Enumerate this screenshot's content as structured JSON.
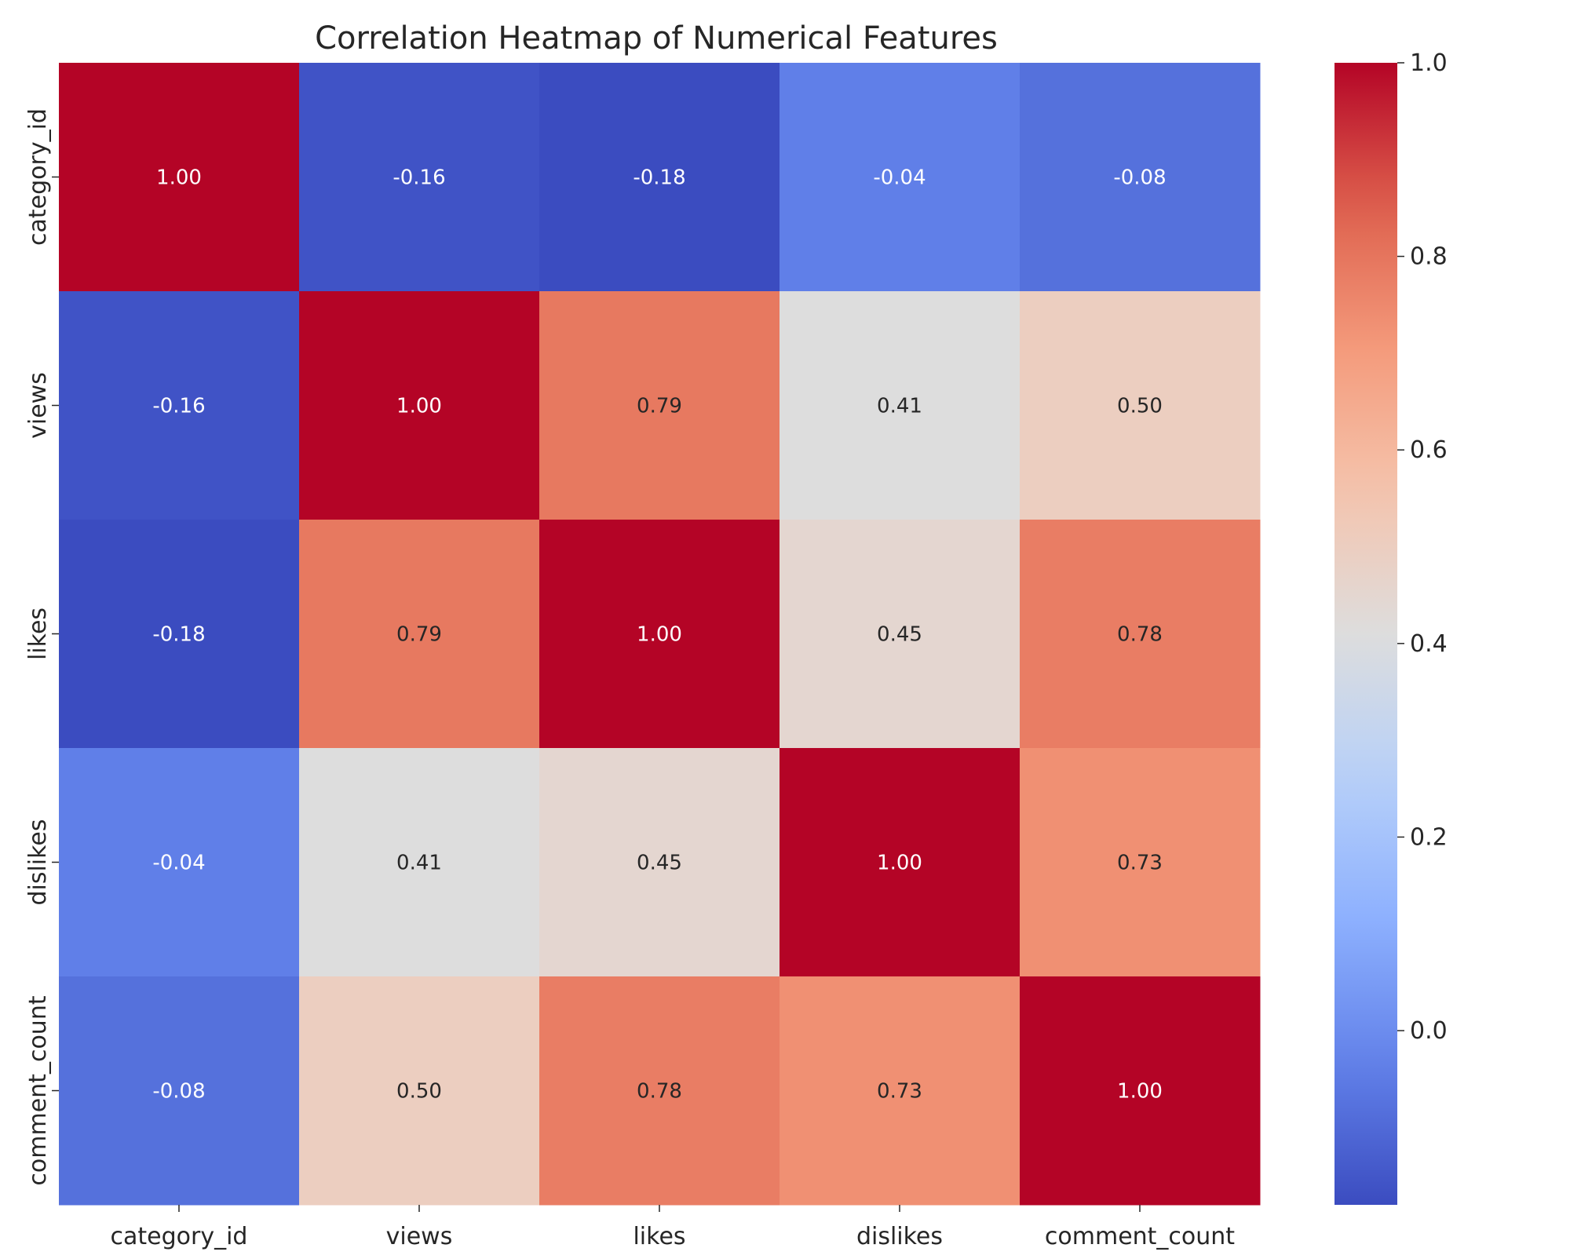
{
  "chart_data": {
    "type": "heatmap",
    "title": "Correlation Heatmap of Numerical Features",
    "xlabel": "",
    "ylabel": "",
    "x_categories": [
      "category_id",
      "views",
      "likes",
      "dislikes",
      "comment_count"
    ],
    "y_categories": [
      "category_id",
      "views",
      "likes",
      "dislikes",
      "comment_count"
    ],
    "values": [
      [
        1.0,
        -0.16,
        -0.18,
        -0.04,
        -0.08
      ],
      [
        -0.16,
        1.0,
        0.79,
        0.41,
        0.5
      ],
      [
        -0.18,
        0.79,
        1.0,
        0.45,
        0.78
      ],
      [
        -0.04,
        0.41,
        0.45,
        1.0,
        0.73
      ],
      [
        -0.08,
        0.5,
        0.78,
        0.73,
        1.0
      ]
    ],
    "value_labels": [
      [
        "1.00",
        "-0.16",
        "-0.18",
        "-0.04",
        "-0.08"
      ],
      [
        "-0.16",
        "1.00",
        "0.79",
        "0.41",
        "0.50"
      ],
      [
        "-0.18",
        "0.79",
        "1.00",
        "0.45",
        "0.78"
      ],
      [
        "-0.04",
        "0.41",
        "0.45",
        "1.00",
        "0.73"
      ],
      [
        "-0.08",
        "0.50",
        "0.78",
        "0.73",
        "1.00"
      ]
    ],
    "colormap": "coolwarm",
    "color_range": [
      -0.18,
      1.0
    ],
    "colorbar_ticks": [
      1.0,
      0.8,
      0.6,
      0.4,
      0.2,
      0.0
    ],
    "colorbar_tick_labels": [
      "1.0",
      "0.8",
      "0.6",
      "0.4",
      "0.2",
      "0.0"
    ],
    "colorbar_placement": "right",
    "grid": false,
    "legend": "none"
  }
}
